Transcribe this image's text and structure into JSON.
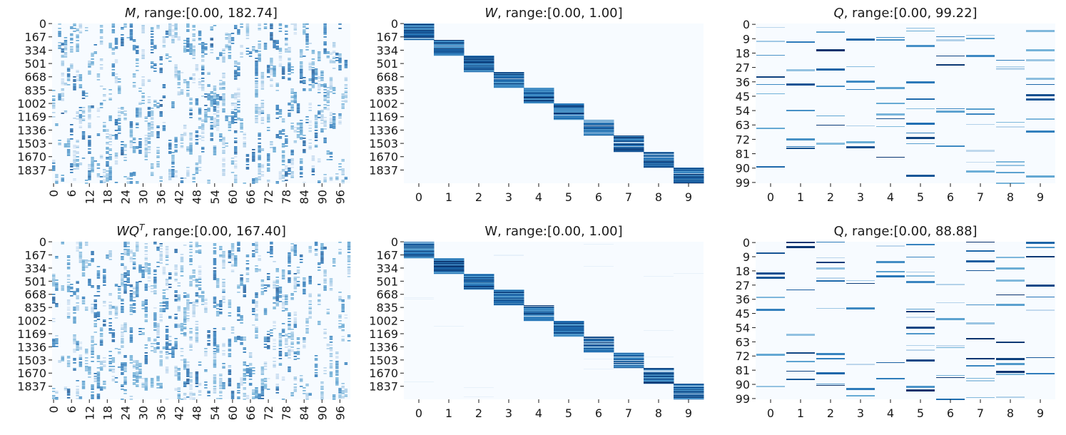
{
  "chart_data": [
    {
      "type": "heatmap",
      "title_var": "M",
      "title_sup": "",
      "title_rest": ", range:[0.00, 182.74]",
      "title_italic": true,
      "yticks": [
        "0",
        "167",
        "334",
        "501",
        "668",
        "835",
        "1002",
        "1169",
        "1336",
        "1503",
        "1670",
        "1837"
      ],
      "xticks": [
        "0",
        "6",
        "12",
        "18",
        "24",
        "30",
        "36",
        "42",
        "48",
        "54",
        "60",
        "66",
        "72",
        "78",
        "84",
        "90",
        "96"
      ],
      "x_rotate": true,
      "rows": 2004,
      "cols": 100,
      "range": [
        0.0,
        182.74
      ],
      "pattern": "sparse",
      "colormap": "Blues"
    },
    {
      "type": "heatmap",
      "title_var": "W",
      "title_sup": "",
      "title_rest": ", range:[0.00, 1.00]",
      "title_italic": true,
      "yticks": [
        "0",
        "167",
        "334",
        "501",
        "668",
        "835",
        "1002",
        "1169",
        "1336",
        "1503",
        "1670",
        "1837"
      ],
      "xticks": [
        "0",
        "1",
        "2",
        "3",
        "4",
        "5",
        "6",
        "7",
        "8",
        "9"
      ],
      "x_rotate": false,
      "rows": 2004,
      "cols": 10,
      "range": [
        0.0,
        1.0
      ],
      "pattern": "block",
      "colormap": "Blues"
    },
    {
      "type": "heatmap",
      "title_var": "Q",
      "title_sup": "",
      "title_rest": ", range:[0.00, 99.22]",
      "title_italic": true,
      "yticks": [
        "0",
        "9",
        "18",
        "27",
        "36",
        "45",
        "54",
        "63",
        "72",
        "81",
        "90",
        "99"
      ],
      "xticks": [
        "0",
        "1",
        "2",
        "3",
        "4",
        "5",
        "6",
        "7",
        "8",
        "9"
      ],
      "x_rotate": false,
      "rows": 100,
      "cols": 10,
      "range": [
        0.0,
        99.22
      ],
      "pattern": "stripes",
      "colormap": "Blues"
    },
    {
      "type": "heatmap",
      "title_var": "WQ",
      "title_sup": "T",
      "title_rest": ", range:[0.00, 167.40]",
      "title_italic": true,
      "yticks": [
        "0",
        "167",
        "334",
        "501",
        "668",
        "835",
        "1002",
        "1169",
        "1336",
        "1503",
        "1670",
        "1837"
      ],
      "xticks": [
        "0",
        "6",
        "12",
        "18",
        "24",
        "30",
        "36",
        "42",
        "48",
        "54",
        "60",
        "66",
        "72",
        "78",
        "84",
        "90",
        "96"
      ],
      "x_rotate": true,
      "rows": 2004,
      "cols": 100,
      "range": [
        0.0,
        167.4
      ],
      "pattern": "sparse",
      "colormap": "Blues"
    },
    {
      "type": "heatmap",
      "title_var": "",
      "title_sup": "",
      "title_rest": "W, range:[0.00, 1.00]",
      "title_italic": false,
      "yticks": [
        "0",
        "167",
        "334",
        "501",
        "668",
        "835",
        "1002",
        "1169",
        "1336",
        "1503",
        "1670",
        "1837"
      ],
      "xticks": [
        "0",
        "1",
        "2",
        "3",
        "4",
        "5",
        "6",
        "7",
        "8",
        "9"
      ],
      "x_rotate": false,
      "rows": 2004,
      "cols": 10,
      "range": [
        0.0,
        1.0
      ],
      "pattern": "block",
      "colormap": "Blues"
    },
    {
      "type": "heatmap",
      "title_var": "",
      "title_sup": "",
      "title_rest": "Q, range:[0.00, 88.88]",
      "title_italic": false,
      "yticks": [
        "0",
        "9",
        "18",
        "27",
        "36",
        "45",
        "54",
        "63",
        "72",
        "81",
        "90",
        "99"
      ],
      "xticks": [
        "0",
        "1",
        "2",
        "3",
        "4",
        "5",
        "6",
        "7",
        "8",
        "9"
      ],
      "x_rotate": false,
      "rows": 100,
      "cols": 10,
      "range": [
        0.0,
        88.88
      ],
      "pattern": "stripes",
      "colormap": "Blues"
    }
  ]
}
